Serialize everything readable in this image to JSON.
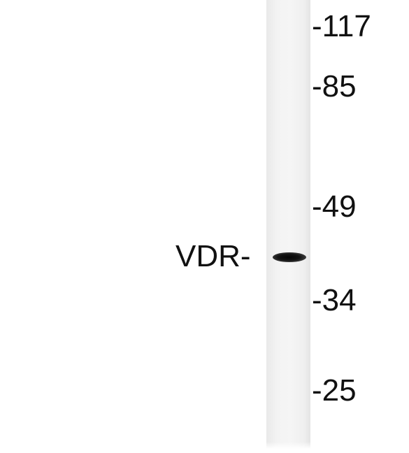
{
  "blot": {
    "protein_label": "VDR-",
    "markers": [
      {
        "label": "-117"
      },
      {
        "label": "-85"
      },
      {
        "label": "-49"
      },
      {
        "label": "-34"
      },
      {
        "label": "-25"
      }
    ]
  }
}
